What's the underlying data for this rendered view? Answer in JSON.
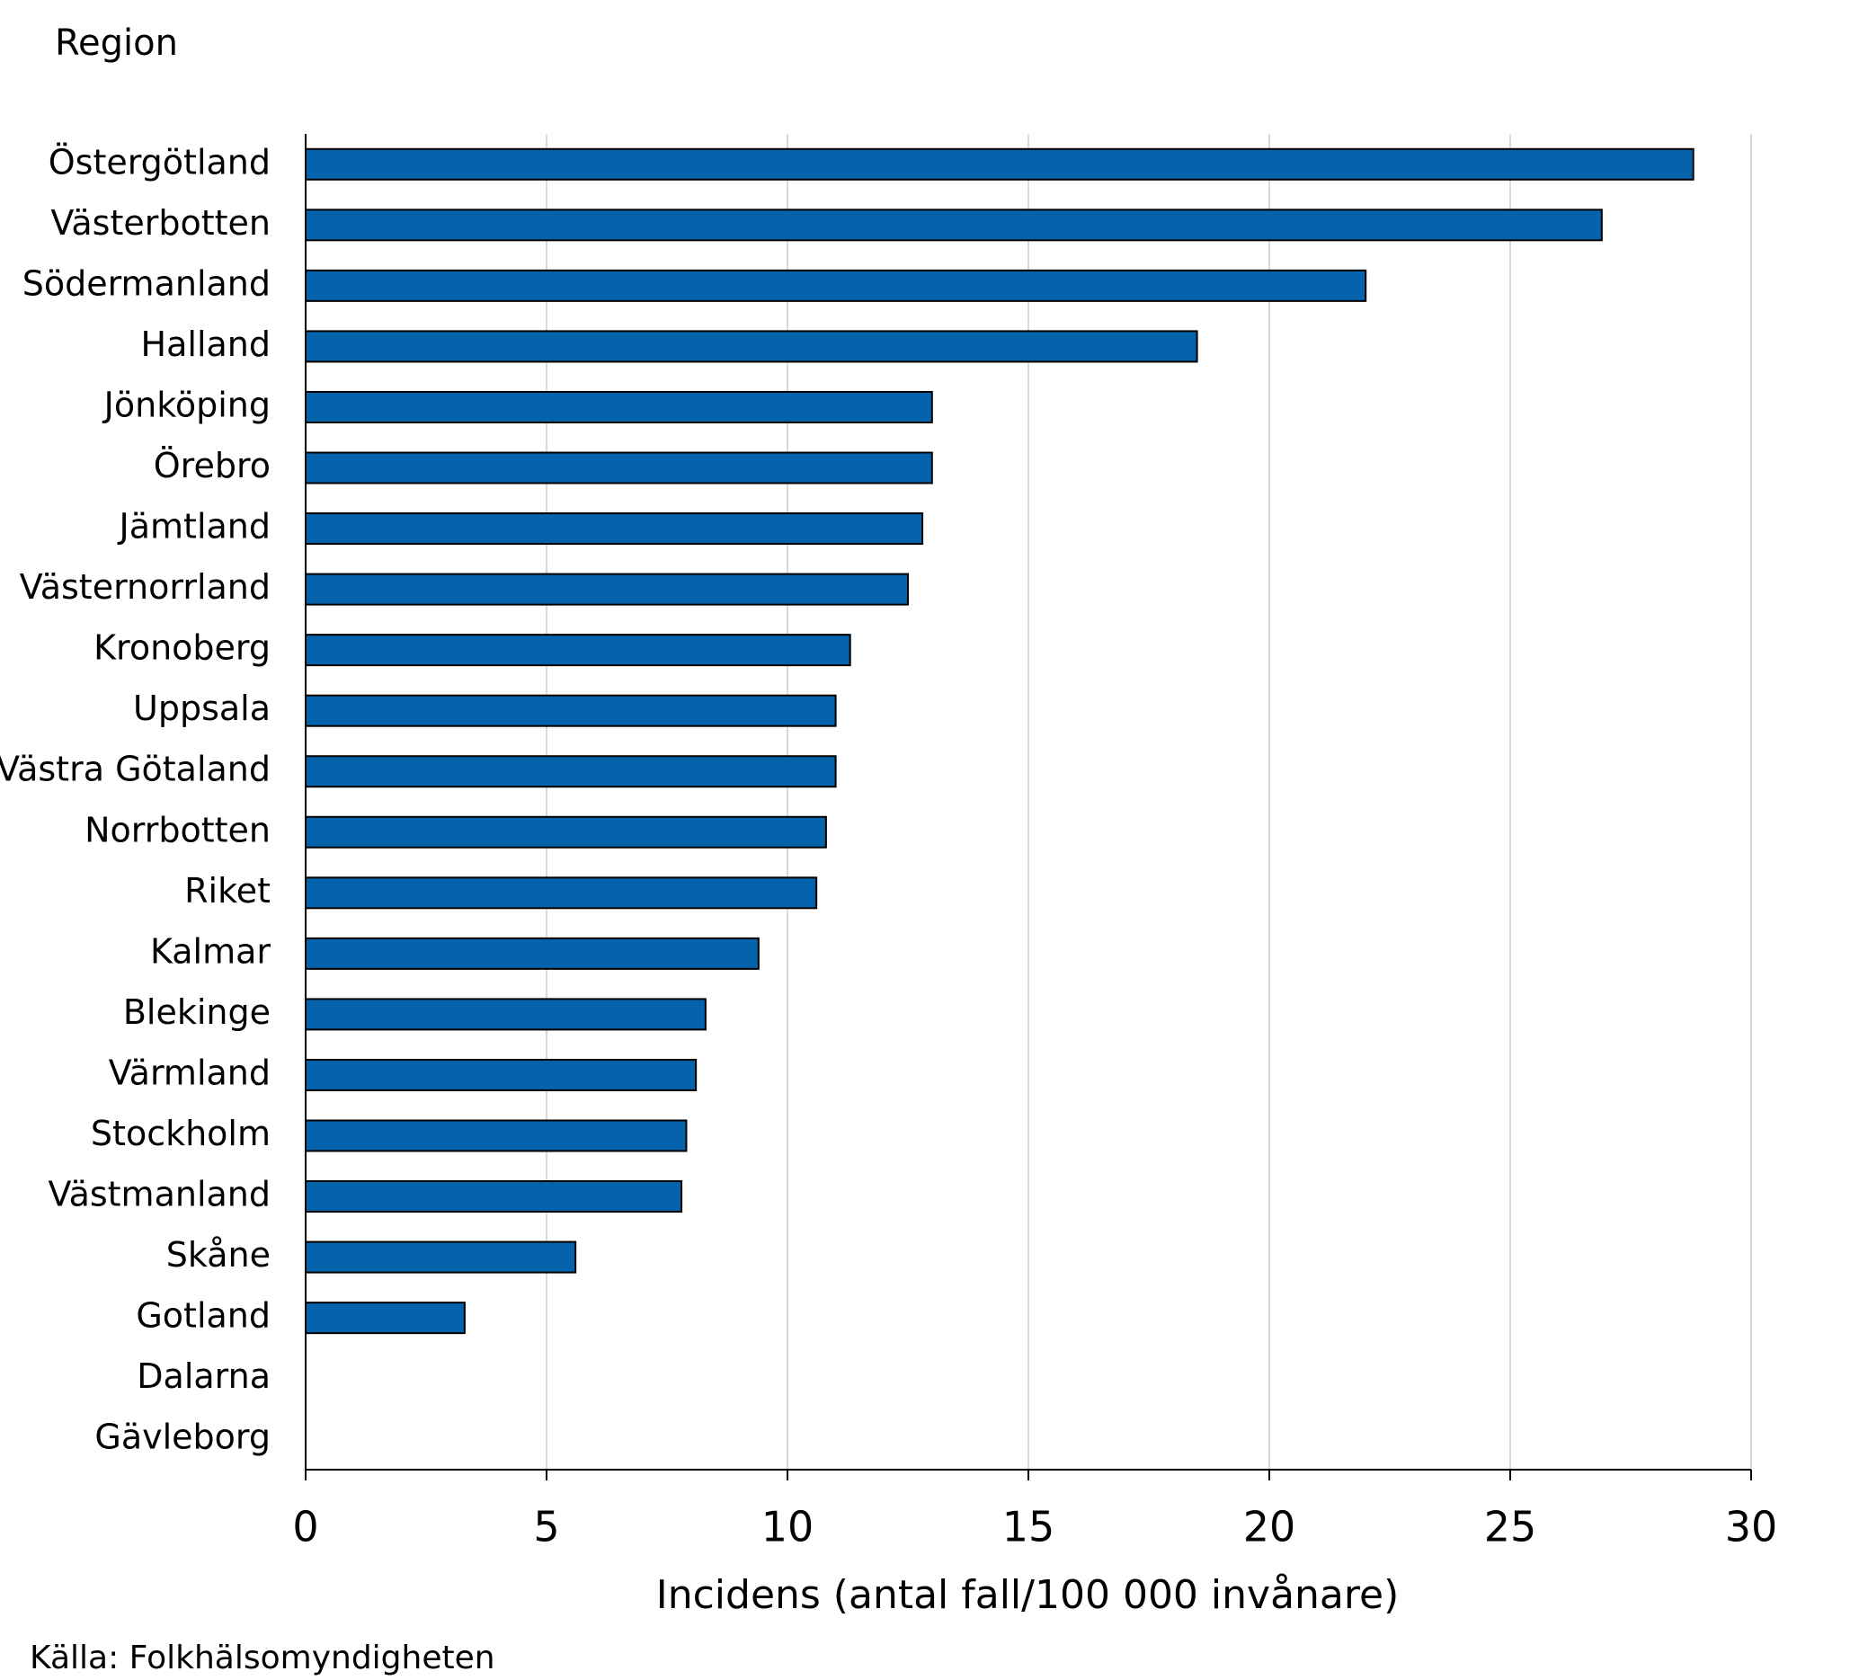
{
  "chart_data": {
    "type": "hbar",
    "y_label": "Region",
    "x_label": "Incidens (antal fall/100 000 invånare)",
    "source": "Källa: Folkhälsomyndigheten",
    "categories": [
      "Östergötland",
      "Västerbotten",
      "Södermanland",
      "Halland",
      "Jönköping",
      "Örebro",
      "Jämtland",
      "Västernorrland",
      "Kronoberg",
      "Uppsala",
      "Västra Götaland",
      "Norrbotten",
      "Riket",
      "Kalmar",
      "Blekinge",
      "Värmland",
      "Stockholm",
      "Västmanland",
      "Skåne",
      "Gotland",
      "Dalarna",
      "Gävleborg"
    ],
    "values": [
      28.8,
      26.9,
      22.0,
      18.5,
      13.0,
      13.0,
      12.8,
      12.5,
      11.3,
      11.0,
      11.0,
      10.8,
      10.6,
      9.4,
      8.3,
      8.1,
      7.9,
      7.8,
      5.6,
      3.3,
      0,
      0
    ],
    "color": "#0563ac",
    "xlim": [
      0,
      30
    ],
    "xticks": [
      0,
      5,
      10,
      15,
      20,
      25,
      30
    ],
    "grid": true
  }
}
